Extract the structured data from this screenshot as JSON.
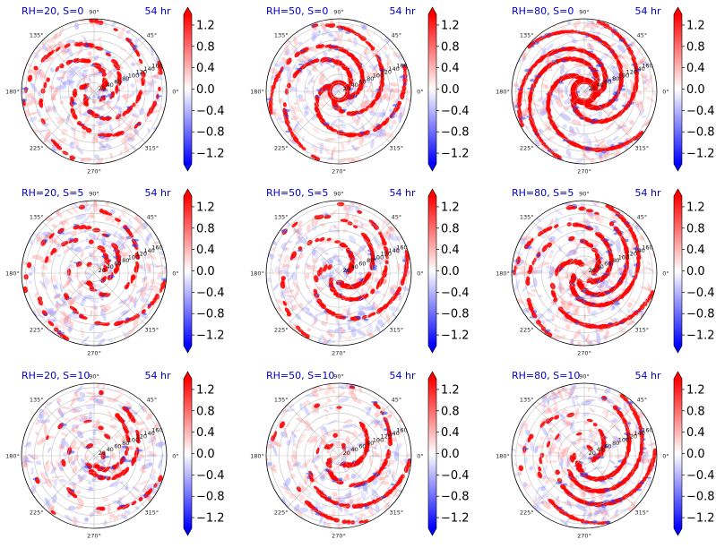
{
  "figure": {
    "time_label": "54 hr",
    "colorbar_ticks": [
      "1.2",
      "0.8",
      "0.4",
      "0.0",
      "−0.4",
      "−0.8",
      "−1.2"
    ],
    "colorbar_tick_values": [
      1.2,
      0.8,
      0.4,
      0.0,
      -0.4,
      -0.8,
      -1.2
    ],
    "colorbar_range": [
      -1.4,
      1.4
    ],
    "colors": {
      "positive": "#ff0000",
      "negative": "#0000ff",
      "title": "#0000cc"
    },
    "angle_labels": [
      "0°",
      "45°",
      "90°",
      "135°",
      "180°",
      "225°",
      "270°",
      "315°"
    ],
    "angle_values": [
      0,
      45,
      90,
      135,
      180,
      225,
      270,
      315
    ],
    "radial_labels": [
      "20",
      "40",
      "60",
      "80",
      "100",
      "120",
      "140",
      "160"
    ],
    "radial_values": [
      20,
      40,
      60,
      80,
      100,
      120,
      140,
      160
    ]
  },
  "chart_data": [
    {
      "type": "heatmap",
      "projection": "polar",
      "title": "RH=20, S=0",
      "time": "54 hr",
      "rh": 20,
      "shear": 0,
      "r_range": [
        0,
        170
      ],
      "clim": [
        -1.4,
        1.4
      ],
      "colormap": "bwr"
    },
    {
      "type": "heatmap",
      "projection": "polar",
      "title": "RH=50, S=0",
      "time": "54 hr",
      "rh": 50,
      "shear": 0,
      "r_range": [
        0,
        170
      ],
      "clim": [
        -1.4,
        1.4
      ],
      "colormap": "bwr"
    },
    {
      "type": "heatmap",
      "projection": "polar",
      "title": "RH=80, S=0",
      "time": "54 hr",
      "rh": 80,
      "shear": 0,
      "r_range": [
        0,
        170
      ],
      "clim": [
        -1.4,
        1.4
      ],
      "colormap": "bwr"
    },
    {
      "type": "heatmap",
      "projection": "polar",
      "title": "RH=20, S=5",
      "time": "54 hr",
      "rh": 20,
      "shear": 5,
      "r_range": [
        0,
        170
      ],
      "clim": [
        -1.4,
        1.4
      ],
      "colormap": "bwr"
    },
    {
      "type": "heatmap",
      "projection": "polar",
      "title": "RH=50, S=5",
      "time": "54 hr",
      "rh": 50,
      "shear": 5,
      "r_range": [
        0,
        170
      ],
      "clim": [
        -1.4,
        1.4
      ],
      "colormap": "bwr"
    },
    {
      "type": "heatmap",
      "projection": "polar",
      "title": "RH=80, S=5",
      "time": "54 hr",
      "rh": 80,
      "shear": 5,
      "r_range": [
        0,
        170
      ],
      "clim": [
        -1.4,
        1.4
      ],
      "colormap": "bwr"
    },
    {
      "type": "heatmap",
      "projection": "polar",
      "title": "RH=20, S=10",
      "time": "54 hr",
      "rh": 20,
      "shear": 10,
      "r_range": [
        0,
        170
      ],
      "clim": [
        -1.4,
        1.4
      ],
      "colormap": "bwr"
    },
    {
      "type": "heatmap",
      "projection": "polar",
      "title": "RH=50, S=10",
      "time": "54 hr",
      "rh": 50,
      "shear": 10,
      "r_range": [
        0,
        170
      ],
      "clim": [
        -1.4,
        1.4
      ],
      "colormap": "bwr"
    },
    {
      "type": "heatmap",
      "projection": "polar",
      "title": "RH=80, S=10",
      "time": "54 hr",
      "rh": 80,
      "shear": 10,
      "r_range": [
        0,
        170
      ],
      "clim": [
        -1.4,
        1.4
      ],
      "colormap": "bwr"
    }
  ]
}
